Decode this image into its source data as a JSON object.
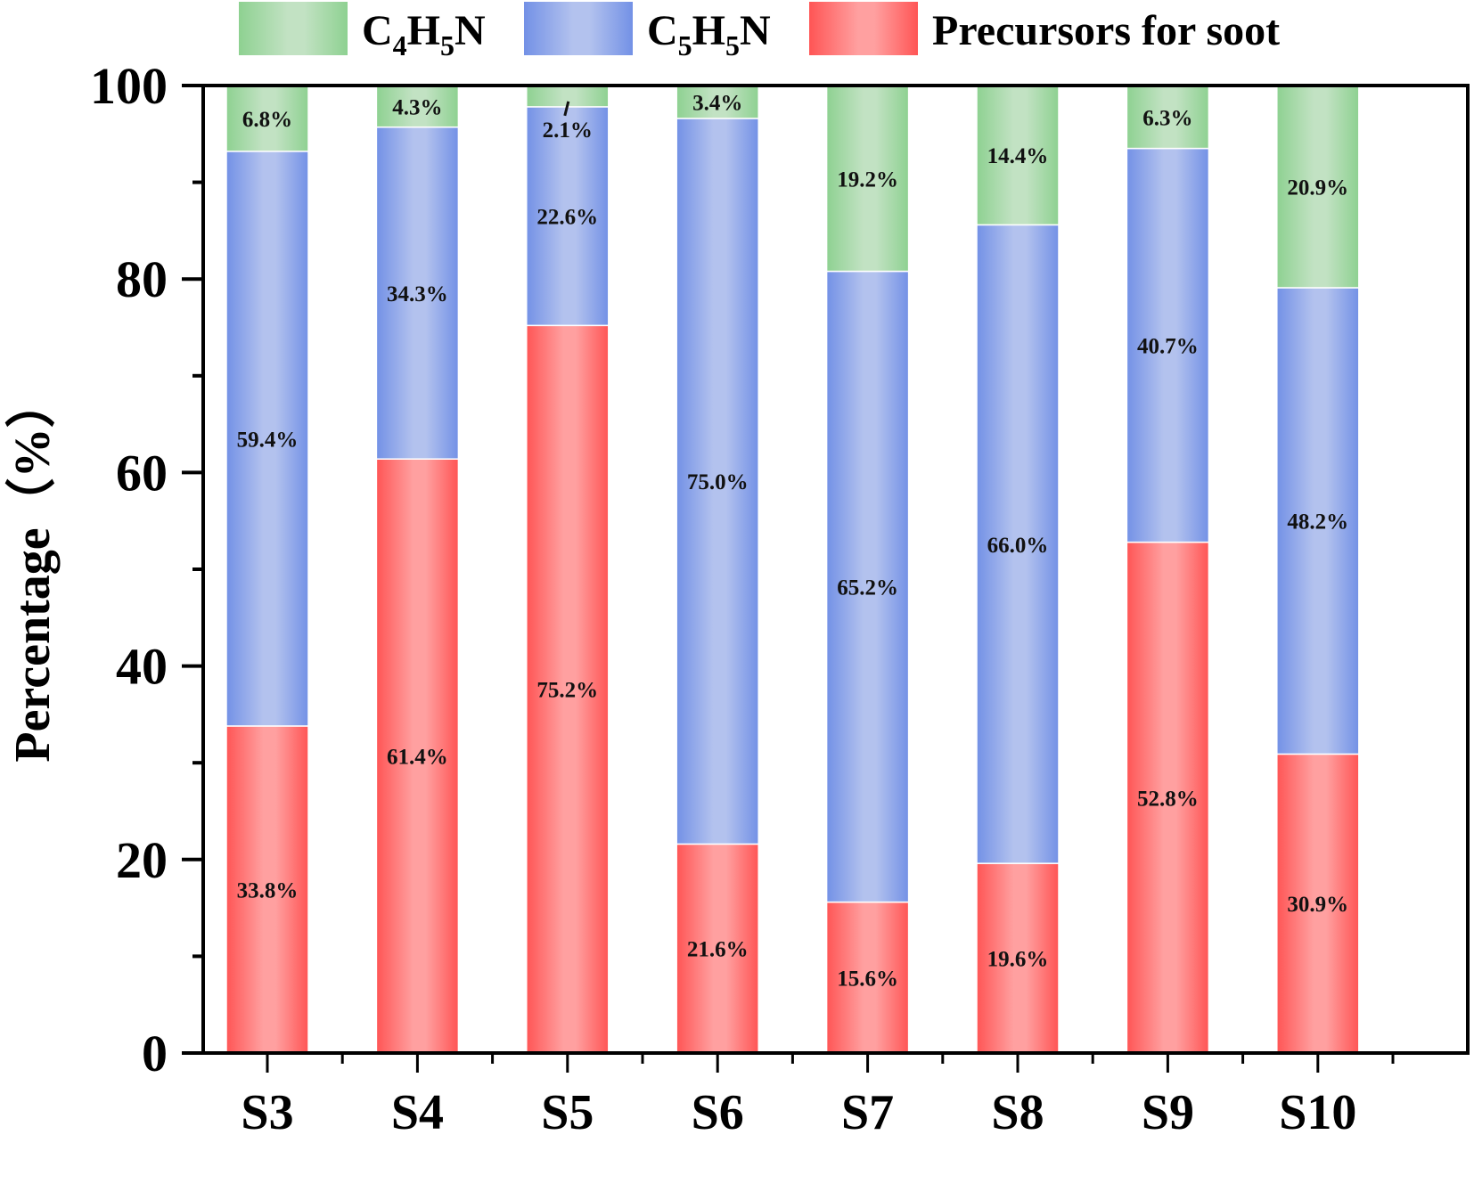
{
  "chart_data": {
    "type": "bar",
    "stacked": true,
    "title": "",
    "xlabel": "",
    "ylabel": "Percentage（%）",
    "ylim": [
      0,
      100
    ],
    "yticks": [
      0,
      20,
      40,
      60,
      80,
      100
    ],
    "yminor_step": 10,
    "grid": false,
    "legend_position": "top",
    "categories": [
      "S3",
      "S4",
      "S5",
      "S6",
      "S7",
      "S8",
      "S9",
      "S10"
    ],
    "series": [
      {
        "name": "Precursors for soot",
        "legend_main": "Precursors for soot",
        "color": "#ff5555",
        "color_light": "#ffa0a0",
        "values": [
          33.8,
          61.4,
          75.2,
          21.6,
          15.6,
          19.6,
          52.8,
          30.9
        ],
        "labels": [
          "33.8%",
          "61.4%",
          "75.2%",
          "21.6%",
          "15.6%",
          "19.6%",
          "52.8%",
          "30.9%"
        ]
      },
      {
        "name": "C5H5N",
        "legend_main": "C",
        "legend_parts": [
          [
            "C",
            ""
          ],
          [
            "5",
            "sub"
          ],
          [
            "H",
            ""
          ],
          [
            "5",
            "sub"
          ],
          [
            "N",
            ""
          ]
        ],
        "color": "#7391e6",
        "color_light": "#b3c2ee",
        "values": [
          59.4,
          34.3,
          22.6,
          75.0,
          65.2,
          66.0,
          40.7,
          48.2
        ],
        "labels": [
          "59.4%",
          "34.3%",
          "22.6%",
          "75.0%",
          "65.2%",
          "66.0%",
          "40.7%",
          "48.2%"
        ]
      },
      {
        "name": "C4H5N",
        "legend_parts": [
          [
            "C",
            ""
          ],
          [
            "4",
            "sub"
          ],
          [
            "H",
            ""
          ],
          [
            "5",
            "sub"
          ],
          [
            "N",
            ""
          ]
        ],
        "color": "#8ed191",
        "color_light": "#c2e2c3",
        "values": [
          6.8,
          4.3,
          2.1,
          3.4,
          19.2,
          14.4,
          6.3,
          20.9
        ],
        "labels": [
          "6.8%",
          "4.3%",
          "2.1%",
          "3.4%",
          "19.2%",
          "14.4%",
          "6.3%",
          "20.9%"
        ]
      }
    ],
    "legend_order": [
      "C4H5N",
      "C5H5N",
      "Precursors for soot"
    ],
    "annotations": [
      {
        "category": "S5",
        "series": "C4H5N",
        "text": "2.1%",
        "note": "label placed below segment with pointer mark"
      }
    ]
  }
}
